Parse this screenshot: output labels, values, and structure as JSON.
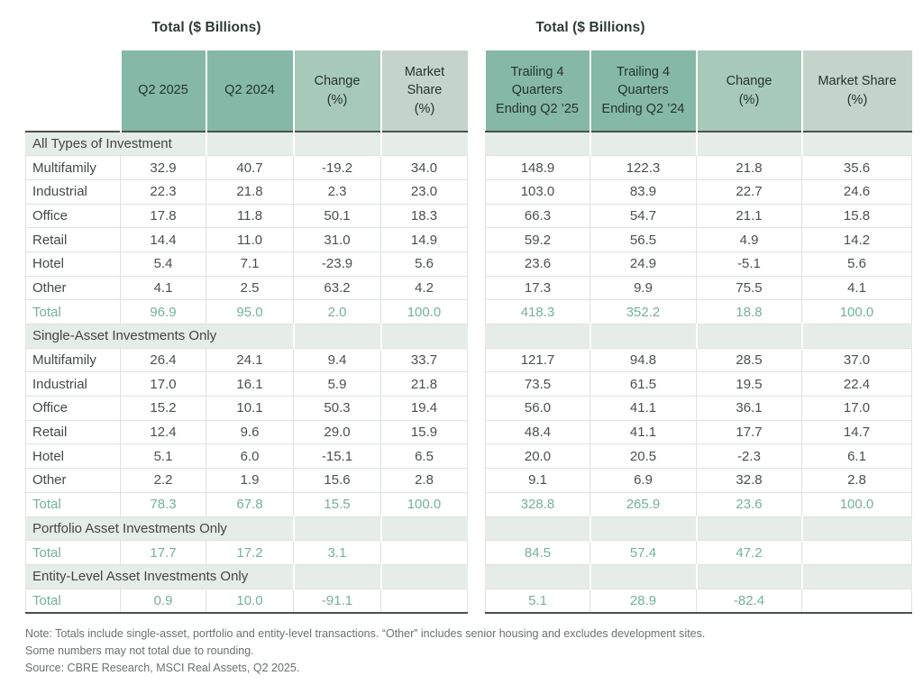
{
  "chart_data": {
    "type": "table",
    "tables": [
      {
        "id": "left",
        "title": "Total ($ Billions)",
        "columns": [
          "Q2 2025",
          "Q2 2024",
          "Change\n(%)",
          "Market\nShare\n(%)"
        ]
      },
      {
        "id": "right",
        "title": "Total ($ Billions)",
        "columns": [
          "Trailing 4\nQuarters\nEnding Q2 ’25",
          "Trailing 4\nQuarters\nEnding Q2 ’24",
          "Change\n(%)",
          "Market Share\n(%)"
        ]
      }
    ],
    "sections": [
      {
        "label": "All Types of Investment",
        "label_span": 2,
        "rows": [
          {
            "label": "Multifamily",
            "total": false,
            "left": [
              "32.9",
              "40.7",
              "-19.2",
              "34.0"
            ],
            "right": [
              "148.9",
              "122.3",
              "21.8",
              "35.6"
            ]
          },
          {
            "label": "Industrial",
            "total": false,
            "left": [
              "22.3",
              "21.8",
              "2.3",
              "23.0"
            ],
            "right": [
              "103.0",
              "83.9",
              "22.7",
              "24.6"
            ]
          },
          {
            "label": "Office",
            "total": false,
            "left": [
              "17.8",
              "11.8",
              "50.1",
              "18.3"
            ],
            "right": [
              "66.3",
              "54.7",
              "21.1",
              "15.8"
            ]
          },
          {
            "label": "Retail",
            "total": false,
            "left": [
              "14.4",
              "11.0",
              "31.0",
              "14.9"
            ],
            "right": [
              "59.2",
              "56.5",
              "4.9",
              "14.2"
            ]
          },
          {
            "label": "Hotel",
            "total": false,
            "left": [
              "5.4",
              "7.1",
              "-23.9",
              "5.6"
            ],
            "right": [
              "23.6",
              "24.9",
              "-5.1",
              "5.6"
            ]
          },
          {
            "label": "Other",
            "total": false,
            "left": [
              "4.1",
              "2.5",
              "63.2",
              "4.2"
            ],
            "right": [
              "17.3",
              "9.9",
              "75.5",
              "4.1"
            ]
          },
          {
            "label": "Total",
            "total": true,
            "left": [
              "96.9",
              "95.0",
              "2.0",
              "100.0"
            ],
            "right": [
              "418.3",
              "352.2",
              "18.8",
              "100.0"
            ]
          }
        ]
      },
      {
        "label": "Single-Asset Investments Only",
        "label_span": 3,
        "rows": [
          {
            "label": "Multifamily",
            "total": false,
            "left": [
              "26.4",
              "24.1",
              "9.4",
              "33.7"
            ],
            "right": [
              "121.7",
              "94.8",
              "28.5",
              "37.0"
            ]
          },
          {
            "label": "Industrial",
            "total": false,
            "left": [
              "17.0",
              "16.1",
              "5.9",
              "21.8"
            ],
            "right": [
              "73.5",
              "61.5",
              "19.5",
              "22.4"
            ]
          },
          {
            "label": "Office",
            "total": false,
            "left": [
              "15.2",
              "10.1",
              "50.3",
              "19.4"
            ],
            "right": [
              "56.0",
              "41.1",
              "36.1",
              "17.0"
            ]
          },
          {
            "label": "Retail",
            "total": false,
            "left": [
              "12.4",
              "9.6",
              "29.0",
              "15.9"
            ],
            "right": [
              "48.4",
              "41.1",
              "17.7",
              "14.7"
            ]
          },
          {
            "label": "Hotel",
            "total": false,
            "left": [
              "5.1",
              "6.0",
              "-15.1",
              "6.5"
            ],
            "right": [
              "20.0",
              "20.5",
              "-2.3",
              "6.1"
            ]
          },
          {
            "label": "Other",
            "total": false,
            "left": [
              "2.2",
              "1.9",
              "15.6",
              "2.8"
            ],
            "right": [
              "9.1",
              "6.9",
              "32.8",
              "2.8"
            ]
          },
          {
            "label": "Total",
            "total": true,
            "left": [
              "78.3",
              "67.8",
              "15.5",
              "100.0"
            ],
            "right": [
              "328.8",
              "265.9",
              "23.6",
              "100.0"
            ]
          }
        ]
      },
      {
        "label": "Portfolio Asset Investments Only",
        "label_span": 3,
        "rows": [
          {
            "label": "Total",
            "total": true,
            "left": [
              "17.7",
              "17.2",
              "3.1",
              ""
            ],
            "right": [
              "84.5",
              "57.4",
              "47.2",
              ""
            ]
          }
        ]
      },
      {
        "label": "Entity-Level Asset Investments Only",
        "label_span": 3,
        "rows": [
          {
            "label": "Total",
            "total": true,
            "left": [
              "0.9",
              "10.0",
              "-91.1",
              ""
            ],
            "right": [
              "5.1",
              "28.9",
              "-82.4",
              ""
            ]
          }
        ]
      }
    ],
    "notes": [
      "Note: Totals include single-asset, portfolio and entity-level transactions. “Other” includes senior housing and excludes development sites.",
      "Some numbers may not total due to rounding.",
      "Source: CBRE Research, MSCI Real Assets, Q2 2025."
    ],
    "colors": {
      "header_dark_teal": "#85b8a7",
      "header_mid_teal": "#a7c9ba",
      "header_light_sage": "#c5d4ca",
      "section_band": "#e6ece7",
      "total_text_green": "#74b19b",
      "rule_dark": "#4a514e",
      "grid_light": "#dde3df"
    }
  }
}
